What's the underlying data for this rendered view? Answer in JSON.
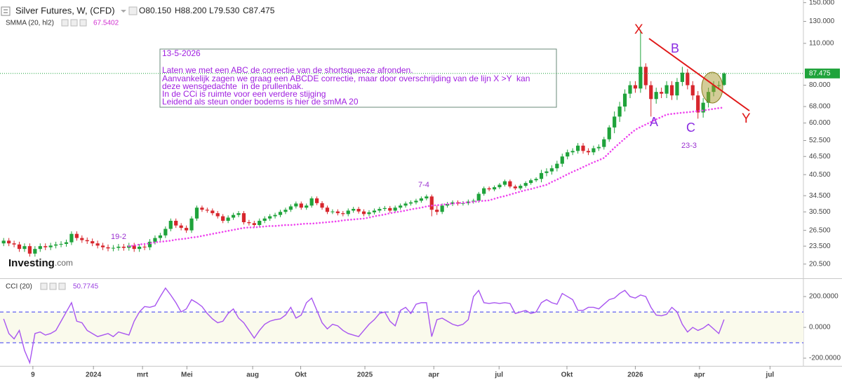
{
  "chart_data": [
    {
      "type": "candlestick",
      "title": "Silver Futures, W, (CFD)",
      "ohlc_labels": [
        "O80.150",
        "H88.200",
        "L79.530",
        "C87.475"
      ],
      "up_color": "#1fa33b",
      "down_color": "#d7262d",
      "log_scale": true,
      "xlim": [
        -0.7,
        153.2
      ],
      "ylim": [
        18.6,
        153
      ],
      "yticks": [
        {
          "value": 20.5,
          "label": "20.500"
        },
        {
          "value": 23.5,
          "label": "23.500"
        },
        {
          "value": 26.5,
          "label": "26.500"
        },
        {
          "value": 30.5,
          "label": "30.500"
        },
        {
          "value": 34.5,
          "label": "34.500"
        },
        {
          "value": 40.5,
          "label": "40.500"
        },
        {
          "value": 46.5,
          "label": "46.500"
        },
        {
          "value": 52.5,
          "label": "52.500"
        },
        {
          "value": 60,
          "label": "60.000"
        },
        {
          "value": 68,
          "label": "68.000"
        },
        {
          "value": 80,
          "label": "80.000"
        },
        {
          "value": 110,
          "label": "110.000"
        },
        {
          "value": 130,
          "label": "130.000"
        },
        {
          "value": 150,
          "label": "150.000"
        }
      ],
      "open": [
        24.0,
        24.5,
        24.0,
        23.8,
        23.0,
        23.5,
        22.2,
        23.0,
        23.5,
        23.3,
        23.6,
        23.8,
        23.9,
        24.2,
        25.8,
        25.0,
        24.6,
        24.4,
        24.0,
        23.6,
        23.3,
        23.1,
        23.2,
        23.4,
        23.2,
        23.6,
        23.0,
        23.4,
        23.3,
        24.3,
        25.0,
        25.5,
        26.8,
        28.5,
        27.5,
        27.0,
        26.5,
        29.0,
        31.5,
        31.0,
        30.8,
        30.2,
        29.5,
        28.5,
        29.2,
        29.8,
        30.2,
        28.2,
        28.0,
        27.6,
        28.5,
        29.0,
        29.5,
        29.8,
        30.5,
        31.0,
        31.8,
        32.5,
        31.5,
        32.0,
        33.8,
        32.6,
        31.5,
        30.5,
        30.6,
        30.2,
        30.0,
        30.8,
        31.2,
        30.6,
        30.0,
        30.4,
        30.8,
        31.2,
        31.4,
        30.8,
        31.5,
        32.0,
        32.5,
        32.8,
        33.2,
        33.8,
        34.3,
        31.0,
        30.5,
        32.0,
        32.4,
        32.8,
        32.5,
        32.6,
        33.0,
        33.2,
        35.0,
        36.5,
        36.2,
        36.8,
        37.5,
        38.5,
        37.0,
        36.5,
        37.2,
        38.0,
        38.8,
        39.2,
        41.0,
        41.5,
        42.5,
        44.0,
        46.5,
        48.0,
        48.5,
        50.5,
        48.5,
        48.0,
        49.5,
        50.0,
        53.0,
        58.0,
        63.0,
        68.0,
        75.0,
        80.0,
        78.0,
        92.0,
        80.0,
        72,
        76,
        75,
        80,
        74,
        82,
        88,
        80,
        74,
        65,
        70,
        76,
        80,
        80.15
      ],
      "high": [
        25.0,
        25.0,
        24.5,
        24.3,
        24.0,
        24.0,
        23.5,
        24.0,
        24.0,
        24.1,
        24.3,
        24.4,
        24.7,
        26.3,
        26.3,
        25.5,
        25.1,
        24.9,
        24.5,
        24.1,
        23.8,
        23.7,
        23.9,
        23.9,
        24.1,
        24.1,
        23.9,
        23.9,
        24.8,
        25.5,
        26.0,
        27.3,
        29.0,
        29.0,
        28.0,
        27.5,
        29.5,
        32.0,
        32.0,
        31.5,
        31.3,
        30.7,
        30.0,
        29.7,
        30.3,
        30.7,
        30.7,
        28.7,
        28.5,
        29.0,
        29.5,
        30.0,
        30.3,
        31.0,
        31.5,
        32.3,
        33.0,
        33.0,
        32.5,
        34.3,
        34.3,
        33.1,
        32.0,
        31.1,
        31.1,
        30.7,
        31.3,
        31.7,
        31.7,
        31.1,
        30.9,
        31.3,
        31.7,
        31.9,
        31.9,
        32.0,
        32.5,
        33.0,
        33.3,
        33.7,
        34.3,
        34.8,
        34.8,
        32.0,
        32.5,
        32.9,
        33.3,
        33.3,
        33.1,
        33.5,
        33.7,
        35.5,
        37.0,
        37.0,
        37.3,
        38.0,
        39.0,
        39.0,
        37.5,
        37.7,
        38.5,
        39.3,
        39.7,
        42.0,
        42.5,
        43.5,
        45.0,
        47.5,
        49.0,
        49.5,
        51.5,
        51.5,
        49.5,
        50.5,
        51.0,
        54.0,
        59.0,
        65.5,
        70.5,
        77.5,
        82.5,
        82.5,
        122.0,
        94.5,
        82.5,
        78.5,
        78.5,
        82.5,
        82.5,
        84.5,
        92.0,
        90.5,
        82.5,
        76.5,
        72.5,
        78.5,
        82.5,
        82.5,
        88.2
      ],
      "low": [
        23.5,
        23.5,
        23.3,
        22.5,
        22.5,
        21.7,
        21.7,
        22.5,
        22.8,
        22.8,
        23.1,
        23.3,
        23.4,
        23.7,
        24.5,
        24.1,
        23.9,
        23.5,
        23.1,
        22.8,
        22.6,
        22.6,
        22.7,
        22.7,
        22.7,
        22.5,
        22.5,
        22.8,
        22.8,
        23.8,
        24.5,
        25.0,
        26.3,
        27.0,
        26.5,
        26.0,
        26.0,
        28.5,
        30.5,
        30.3,
        29.7,
        29.0,
        28.0,
        28.0,
        28.7,
        29.3,
        27.7,
        27.5,
        27.1,
        27.1,
        28.0,
        28.5,
        29.0,
        29.3,
        30.0,
        30.5,
        31.3,
        31.0,
        31.0,
        31.5,
        32.1,
        31.0,
        30.0,
        30.0,
        29.7,
        29.5,
        29.5,
        30.3,
        30.1,
        29.5,
        29.5,
        29.9,
        30.3,
        30.7,
        30.3,
        30.3,
        31.0,
        31.5,
        32.0,
        32.3,
        32.7,
        33.3,
        29.5,
        29.8,
        30.0,
        31.5,
        31.9,
        32.0,
        32.0,
        32.1,
        32.5,
        32.7,
        34.5,
        35.7,
        35.7,
        36.3,
        37.0,
        36.5,
        36.0,
        36.0,
        36.7,
        37.5,
        38.3,
        38.2,
        40.0,
        40.5,
        41.5,
        43.0,
        45.5,
        47.0,
        47.5,
        47.5,
        47.0,
        47.0,
        48.5,
        49.0,
        52.0,
        55.5,
        60.5,
        65.5,
        72.5,
        75.5,
        75.5,
        77.5,
        63.0,
        69.5,
        72.5,
        72.5,
        71.5,
        71.5,
        79.5,
        77.5,
        71.5,
        62.0,
        62.5,
        67.5,
        73.5,
        77.5,
        79.53
      ],
      "close": [
        24.5,
        24.0,
        23.8,
        23.0,
        23.5,
        22.2,
        23.0,
        23.5,
        23.3,
        23.6,
        23.8,
        23.9,
        24.2,
        25.8,
        25.0,
        24.6,
        24.4,
        24.0,
        23.6,
        23.3,
        23.1,
        23.2,
        23.4,
        23.2,
        23.6,
        23.0,
        23.4,
        23.3,
        24.3,
        25.0,
        25.5,
        26.8,
        28.5,
        27.5,
        27.0,
        26.5,
        29.0,
        31.5,
        31.0,
        30.8,
        30.2,
        29.5,
        28.5,
        29.2,
        29.8,
        30.2,
        28.2,
        28.0,
        27.6,
        28.5,
        29.0,
        29.5,
        29.8,
        30.5,
        31.0,
        31.8,
        32.5,
        31.5,
        32.0,
        33.8,
        32.6,
        31.5,
        30.5,
        30.6,
        30.2,
        30.0,
        30.8,
        31.2,
        30.6,
        30.0,
        30.4,
        30.8,
        31.2,
        31.4,
        30.8,
        31.5,
        32.0,
        32.5,
        32.8,
        33.2,
        33.8,
        34.3,
        31.0,
        30.5,
        32.0,
        32.4,
        32.8,
        32.5,
        32.6,
        33.0,
        33.2,
        35.0,
        36.5,
        36.2,
        36.8,
        37.5,
        38.5,
        37.0,
        36.5,
        37.2,
        38.0,
        38.8,
        39.2,
        41.0,
        41.5,
        42.5,
        44.0,
        46.5,
        48.0,
        48.5,
        50.5,
        48.5,
        48.0,
        49.5,
        50.0,
        53.0,
        58.0,
        63.0,
        68.0,
        75.0,
        80.0,
        78.0,
        92.0,
        80.0,
        72,
        76,
        75,
        80,
        74,
        82,
        88,
        80,
        74,
        65,
        70,
        76,
        80,
        80,
        87.475
      ],
      "overlays": [
        {
          "name": "SMMA (20, hl2)",
          "color": "#ee44ee",
          "values": [
            null,
            null,
            null,
            null,
            null,
            null,
            null,
            null,
            null,
            null,
            null,
            null,
            null,
            null,
            null,
            null,
            null,
            null,
            null,
            null,
            null,
            null,
            null,
            null,
            23.5,
            23.6,
            23.8,
            23.9,
            24.0,
            24.2,
            24.3,
            24.4,
            24.5,
            24.7,
            24.8,
            24.9,
            25.1,
            25.2,
            25.4,
            25.6,
            25.8,
            26.0,
            26.2,
            26.4,
            26.6,
            26.8,
            27.0,
            27.1,
            27.1,
            27.2,
            27.3,
            27.4,
            27.4,
            27.5,
            27.6,
            27.6,
            27.7,
            27.8,
            27.9,
            27.9,
            28.0,
            28.1,
            28.2,
            28.3,
            28.4,
            28.6,
            28.7,
            28.8,
            28.9,
            29.0,
            29.2,
            29.5,
            29.7,
            29.9,
            30.2,
            30.4,
            30.6,
            30.8,
            31.1,
            31.3,
            31.5,
            31.8,
            32.0,
            32.1,
            32.2,
            32.4,
            32.5,
            32.6,
            32.7,
            32.8,
            32.9,
            33.1,
            33.2,
            33.3,
            33.7,
            34.1,
            34.4,
            34.8,
            35.2,
            35.6,
            36.0,
            36.3,
            36.7,
            37.1,
            37.5,
            38.3,
            39.0,
            39.8,
            40.6,
            41.4,
            42.1,
            42.9,
            43.7,
            44.5,
            45.2,
            46.0,
            47.8,
            49.7,
            51.5,
            53.3,
            55.2,
            57.0,
            58.2,
            59.3,
            60.5,
            61.7,
            62.8,
            64.0,
            64.3,
            64.6,
            64.9,
            65.1,
            65.4,
            65.7,
            66.0,
            66.4,
            66.8,
            67.2,
            67.5402
          ]
        }
      ],
      "annotations": [
        "X",
        "B",
        "A",
        "C",
        "Y",
        "7-4",
        "19-2",
        "23-3"
      ],
      "note": [
        "13-5-2026",
        "Laten we met een ABC de correctie van de shortsqueeze afronden.",
        "Aanvankelijk zagen we graag een ABCDE correctie, maar door overschrijding van de lijn X >Y  kan",
        "deze wensgedachte  in de prullenbak.",
        "In de CCi is ruimte voor een verdere stijging",
        "Leidend als steun onder bodems is hier de smMA 20"
      ],
      "logo": [
        "Investing",
        ".com"
      ]
    },
    {
      "type": "line",
      "title": "CCI (20)",
      "color": "#a855f0",
      "band_color": "#3a3af0",
      "xlim": [
        -0.7,
        153.2
      ],
      "ylim": [
        -250,
        305
      ],
      "yticks": [
        {
          "value": 200,
          "label": "200.0000"
        },
        {
          "value": 0,
          "label": "0.0000"
        },
        {
          "value": -200,
          "label": "-200.0000"
        }
      ],
      "bands": [
        100,
        -100
      ],
      "xticks": [
        {
          "value": 5.6,
          "label": "9"
        },
        {
          "value": 17.2,
          "label": "2024"
        },
        {
          "value": 26.6,
          "label": "mrt"
        },
        {
          "value": 35.1,
          "label": "Mei"
        },
        {
          "value": 47.7,
          "label": "aug"
        },
        {
          "value": 56.9,
          "label": "Okt"
        },
        {
          "value": 69.2,
          "label": "2025"
        },
        {
          "value": 82.4,
          "label": "apr"
        },
        {
          "value": 94.9,
          "label": "jul"
        },
        {
          "value": 107.9,
          "label": "Okt"
        },
        {
          "value": 121.0,
          "label": "2026"
        },
        {
          "value": 133.3,
          "label": "apr"
        },
        {
          "value": 146.8,
          "label": "jul"
        }
      ],
      "values": [
        55,
        -40,
        -75,
        -20,
        -150,
        -230,
        -40,
        -30,
        -50,
        -40,
        -20,
        40,
        100,
        160,
        40,
        30,
        -20,
        -40,
        -60,
        -50,
        -40,
        -60,
        -30,
        -40,
        -50,
        40,
        100,
        135,
        130,
        140,
        200,
        255,
        210,
        160,
        100,
        120,
        180,
        160,
        135,
        90,
        55,
        30,
        40,
        90,
        120,
        60,
        30,
        -20,
        -70,
        -20,
        20,
        40,
        50,
        55,
        80,
        130,
        60,
        80,
        160,
        190,
        110,
        30,
        -10,
        20,
        10,
        -20,
        -40,
        -50,
        -60,
        -20,
        20,
        50,
        90,
        100,
        40,
        10,
        110,
        130,
        90,
        150,
        160,
        160,
        -60,
        50,
        60,
        40,
        20,
        10,
        20,
        50,
        200,
        240,
        160,
        155,
        160,
        155,
        160,
        155,
        90,
        100,
        110,
        90,
        100,
        160,
        180,
        160,
        150,
        220,
        200,
        180,
        110,
        110,
        130,
        130,
        120,
        150,
        180,
        190,
        220,
        240,
        200,
        190,
        210,
        200,
        130,
        80,
        75,
        85,
        130,
        100,
        20,
        -30,
        0,
        -20,
        -5,
        20,
        -10,
        -40,
        50.7745
      ]
    }
  ]
}
